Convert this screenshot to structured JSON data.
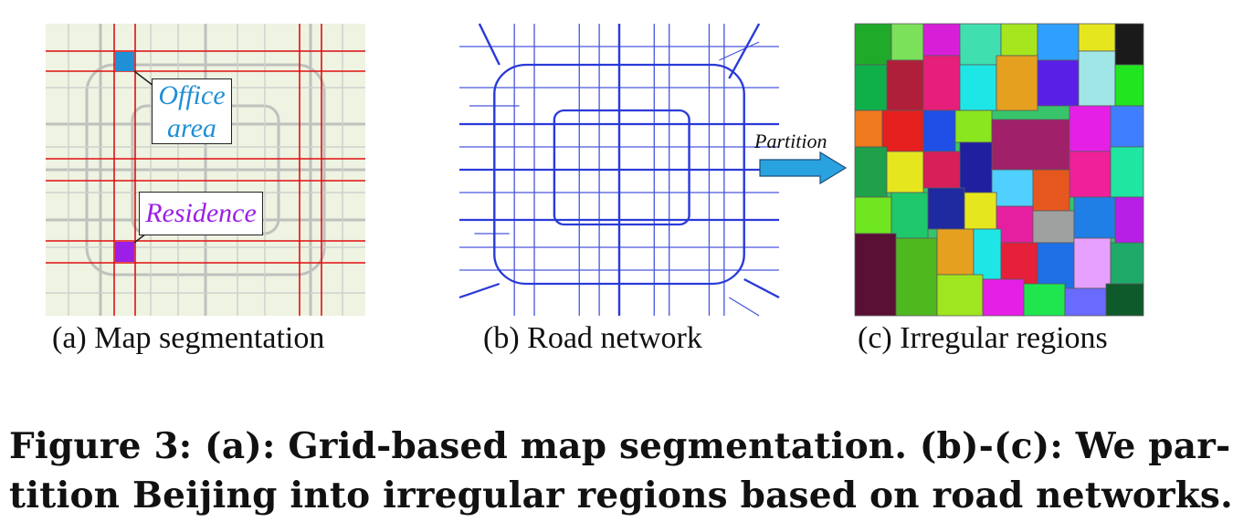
{
  "panels": {
    "a": {
      "caption": "(a) Map segmentation",
      "office_label_line1": "Office",
      "office_label_line2": "area",
      "residence_label": "Residence"
    },
    "b": {
      "caption": "(b) Road network"
    },
    "c": {
      "caption": "(c) Irregular regions"
    }
  },
  "arrow": {
    "label": "Partition"
  },
  "figure_caption": {
    "line1": "Figure 3:  (a): Grid-based map segmentation. (b)-(c): We par-",
    "line2": "tition Beijing into irregular regions based on road networks."
  },
  "colors": {
    "map_bg": "#eef3e2",
    "grid_line": "#e01010",
    "office": "#1f8fd6",
    "residence": "#9b1fe6",
    "road": "#2a3ad8",
    "arrow": "#29a3e0"
  }
}
